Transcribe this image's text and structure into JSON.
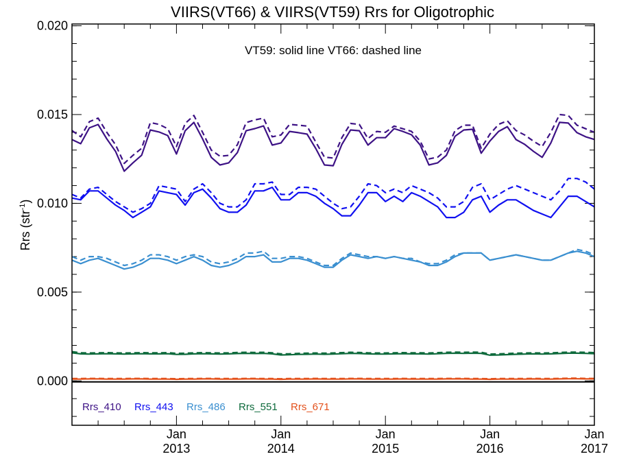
{
  "chart_data": {
    "type": "line",
    "title": "VIIRS(VT66) & VIIRS(VT59)  Rrs for Oligotrophic",
    "annotation": "VT59: solid line   VT66: dashed line",
    "ylabel": {
      "main": "Rrs (str",
      "sup": "-1",
      "close": ")"
    },
    "xlabel": "",
    "xlim": [
      2012.0,
      2017.0
    ],
    "ylim": [
      -0.0025,
      0.0201
    ],
    "x_start": 2012.0,
    "x_step_years": 0.08333,
    "y_ticks": [
      "0.000",
      "0.005",
      "0.010",
      "0.015",
      "0.020"
    ],
    "y_tick_values": [
      0.0,
      0.005,
      0.01,
      0.015,
      0.02
    ],
    "x_ticks": [
      {
        "value": 2013,
        "month": "Jan",
        "year": "2013"
      },
      {
        "value": 2014,
        "month": "Jan",
        "year": "2014"
      },
      {
        "value": 2015,
        "month": "Jan",
        "year": "2015"
      },
      {
        "value": 2016,
        "month": "Jan",
        "year": "2016"
      },
      {
        "value": 2017,
        "month": "Jan",
        "year": "2017"
      }
    ],
    "legend_position": "bottom-left",
    "series": [
      {
        "name": "Rrs_410",
        "color": "#3d1285",
        "solid": [
          0.01359,
          0.01336,
          0.01425,
          0.01444,
          0.01363,
          0.01293,
          0.01181,
          0.01228,
          0.01271,
          0.01413,
          0.01402,
          0.01382,
          0.01278,
          0.01409,
          0.01456,
          0.01363,
          0.01259,
          0.01216,
          0.01228,
          0.01286,
          0.01409,
          0.01421,
          0.01436,
          0.01328,
          0.0134,
          0.01405,
          0.01398,
          0.0139,
          0.01309,
          0.01216,
          0.01212,
          0.01332,
          0.01413,
          0.01409,
          0.01328,
          0.0137,
          0.0137,
          0.01421,
          0.01405,
          0.01386,
          0.01328,
          0.01216,
          0.01228,
          0.0127,
          0.01378,
          0.01413,
          0.01417,
          0.01282,
          0.01351,
          0.01405,
          0.01432,
          0.01359,
          0.01332,
          0.01293,
          0.01259,
          0.0134,
          0.01456,
          0.01452,
          0.01398,
          0.01375,
          0.0136
        ],
        "dashed": [
          0.0141,
          0.01375,
          0.0146,
          0.0148,
          0.014,
          0.0133,
          0.01225,
          0.0127,
          0.0131,
          0.01455,
          0.01445,
          0.0142,
          0.0132,
          0.0145,
          0.01495,
          0.014,
          0.013,
          0.01265,
          0.0127,
          0.0133,
          0.01455,
          0.0147,
          0.0148,
          0.01375,
          0.01385,
          0.01445,
          0.0144,
          0.01435,
          0.01345,
          0.0126,
          0.01255,
          0.0137,
          0.0145,
          0.01445,
          0.01365,
          0.01405,
          0.014,
          0.01435,
          0.0142,
          0.01405,
          0.0135,
          0.0125,
          0.0126,
          0.013,
          0.0141,
          0.0144,
          0.0144,
          0.0131,
          0.0139,
          0.01445,
          0.01465,
          0.0141,
          0.01385,
          0.0135,
          0.0132,
          0.014,
          0.015,
          0.01495,
          0.0144,
          0.0142,
          0.014
        ]
      },
      {
        "name": "Rrs_443",
        "color": "#1010f0",
        "solid": [
          0.0103,
          0.0102,
          0.0107,
          0.0107,
          0.0103,
          0.0099,
          0.0096,
          0.0092,
          0.0095,
          0.0098,
          0.0107,
          0.0106,
          0.0105,
          0.0099,
          0.0106,
          0.0108,
          0.0103,
          0.0097,
          0.0095,
          0.0095,
          0.0099,
          0.0107,
          0.0107,
          0.0109,
          0.0102,
          0.0102,
          0.0106,
          0.0106,
          0.0104,
          0.01,
          0.0097,
          0.0093,
          0.0093,
          0.0099,
          0.0106,
          0.0106,
          0.0101,
          0.0104,
          0.0101,
          0.0106,
          0.0104,
          0.0101,
          0.0098,
          0.0092,
          0.0092,
          0.0095,
          0.0102,
          0.0104,
          0.0095,
          0.0099,
          0.0102,
          0.0102,
          0.0099,
          0.0096,
          0.0094,
          0.0092,
          0.0098,
          0.0104,
          0.0104,
          0.0101,
          0.0098
        ],
        "dashed": [
          0.0105,
          0.0103,
          0.0108,
          0.0109,
          0.0105,
          0.0101,
          0.0098,
          0.0095,
          0.0097,
          0.01,
          0.011,
          0.0109,
          0.0108,
          0.0101,
          0.0108,
          0.0111,
          0.0106,
          0.01,
          0.0098,
          0.0098,
          0.0102,
          0.0111,
          0.0111,
          0.0112,
          0.0105,
          0.0105,
          0.0109,
          0.0109,
          0.0108,
          0.0104,
          0.01,
          0.0097,
          0.0098,
          0.0104,
          0.0111,
          0.011,
          0.0106,
          0.0108,
          0.0106,
          0.011,
          0.0108,
          0.0106,
          0.0103,
          0.0098,
          0.0098,
          0.0101,
          0.0109,
          0.0111,
          0.0102,
          0.0105,
          0.0108,
          0.011,
          0.0108,
          0.0106,
          0.0104,
          0.0102,
          0.0107,
          0.0114,
          0.0114,
          0.0112,
          0.0108
        ]
      },
      {
        "name": "Rrs_486",
        "color": "#3a8fd0",
        "solid": [
          0.0068,
          0.0066,
          0.0068,
          0.0069,
          0.0067,
          0.0065,
          0.0063,
          0.0064,
          0.0066,
          0.0069,
          0.0069,
          0.0068,
          0.0066,
          0.0068,
          0.007,
          0.0068,
          0.0065,
          0.0064,
          0.0065,
          0.0067,
          0.007,
          0.007,
          0.0071,
          0.0067,
          0.0067,
          0.0069,
          0.0069,
          0.0068,
          0.0066,
          0.0064,
          0.0064,
          0.0068,
          0.0071,
          0.007,
          0.0069,
          0.007,
          0.0069,
          0.007,
          0.0069,
          0.0068,
          0.0067,
          0.0065,
          0.0065,
          0.0067,
          0.007,
          0.0072,
          0.0072,
          0.0072,
          0.0068,
          0.0069,
          0.007,
          0.0071,
          0.007,
          0.0069,
          0.0068,
          0.0068,
          0.007,
          0.0072,
          0.0073,
          0.0072,
          0.007
        ],
        "dashed": [
          0.007,
          0.0068,
          0.007,
          0.007,
          0.0069,
          0.0067,
          0.0065,
          0.0066,
          0.0068,
          0.0071,
          0.0071,
          0.007,
          0.0068,
          0.007,
          0.0071,
          0.007,
          0.0067,
          0.0066,
          0.0067,
          0.0069,
          0.0072,
          0.0072,
          0.0073,
          0.0069,
          0.0069,
          0.007,
          0.007,
          0.0069,
          0.0067,
          0.0065,
          0.0065,
          0.0069,
          0.0072,
          0.0071,
          0.007,
          0.007,
          0.0069,
          0.007,
          0.0069,
          0.0069,
          0.0067,
          0.0066,
          0.0066,
          0.0068,
          0.0071,
          0.0072,
          0.0072,
          0.0072,
          0.0068,
          0.0069,
          0.007,
          0.0071,
          0.007,
          0.0069,
          0.0068,
          0.0068,
          0.007,
          0.0072,
          0.0074,
          0.0073,
          0.0071
        ]
      },
      {
        "name": "Rrs_551",
        "color": "#0e6a3c",
        "solid": [
          0.00158,
          0.00152,
          0.00151,
          0.00152,
          0.00153,
          0.00152,
          0.00151,
          0.00152,
          0.00153,
          0.00152,
          0.00152,
          0.00153,
          0.00149,
          0.0015,
          0.00152,
          0.00153,
          0.00152,
          0.00151,
          0.00152,
          0.00154,
          0.00155,
          0.00154,
          0.00155,
          0.00152,
          0.00146,
          0.00147,
          0.00149,
          0.0015,
          0.00151,
          0.0015,
          0.00151,
          0.00153,
          0.00155,
          0.00154,
          0.00152,
          0.00151,
          0.00151,
          0.00152,
          0.00153,
          0.00152,
          0.00152,
          0.00151,
          0.00153,
          0.00155,
          0.00156,
          0.00155,
          0.00156,
          0.00155,
          0.00145,
          0.00146,
          0.00148,
          0.0015,
          0.00151,
          0.00152,
          0.00151,
          0.00152,
          0.00154,
          0.00156,
          0.00156,
          0.00155,
          0.00153
        ],
        "dashed": [
          0.00165,
          0.00158,
          0.00157,
          0.00158,
          0.00159,
          0.00158,
          0.00157,
          0.00158,
          0.00159,
          0.00158,
          0.00158,
          0.00159,
          0.00155,
          0.00156,
          0.00158,
          0.00159,
          0.00158,
          0.00157,
          0.00158,
          0.0016,
          0.00161,
          0.0016,
          0.00161,
          0.00158,
          0.00152,
          0.00153,
          0.00155,
          0.00156,
          0.00157,
          0.00156,
          0.00157,
          0.00159,
          0.00161,
          0.0016,
          0.00158,
          0.00157,
          0.00157,
          0.00158,
          0.00159,
          0.00158,
          0.00158,
          0.00157,
          0.00159,
          0.00161,
          0.00162,
          0.00161,
          0.00162,
          0.00161,
          0.00151,
          0.00152,
          0.00154,
          0.00156,
          0.00157,
          0.00158,
          0.00157,
          0.00158,
          0.0016,
          0.00162,
          0.00162,
          0.00161,
          0.00159
        ]
      },
      {
        "name": "Rrs_671",
        "color": "#e3501a",
        "solid": [
          0.0001,
          0.0001,
          0.00011,
          0.00011,
          0.0001,
          0.0001,
          0.0001,
          0.00011,
          0.00011,
          0.0001,
          0.0001,
          0.0001,
          9e-05,
          0.0001,
          0.0001,
          0.00011,
          0.00011,
          0.0001,
          0.0001,
          0.0001,
          0.00011,
          0.00011,
          0.0001,
          0.0001,
          9e-05,
          0.0001,
          0.0001,
          0.0001,
          0.00011,
          0.0001,
          0.0001,
          0.0001,
          0.00011,
          0.00011,
          0.0001,
          0.0001,
          0.0001,
          0.0001,
          0.00011,
          0.0001,
          0.0001,
          0.0001,
          0.0001,
          0.00011,
          0.00011,
          0.00011,
          0.0001,
          0.0001,
          9e-05,
          0.0001,
          0.0001,
          0.0001,
          0.0001,
          0.00011,
          0.0001,
          0.0001,
          0.00011,
          0.00012,
          0.00012,
          0.00011,
          0.00011
        ],
        "dashed": [
          0.00013,
          0.00013,
          0.00014,
          0.00014,
          0.00013,
          0.00013,
          0.00013,
          0.00014,
          0.00014,
          0.00013,
          0.00013,
          0.00013,
          0.00012,
          0.00013,
          0.00013,
          0.00014,
          0.00014,
          0.00013,
          0.00013,
          0.00013,
          0.00014,
          0.00014,
          0.00013,
          0.00013,
          0.00012,
          0.00013,
          0.00013,
          0.00013,
          0.00014,
          0.00013,
          0.00013,
          0.00013,
          0.00014,
          0.00014,
          0.00013,
          0.00013,
          0.00013,
          0.00013,
          0.00014,
          0.00013,
          0.00013,
          0.00013,
          0.00013,
          0.00014,
          0.00014,
          0.00014,
          0.00013,
          0.00013,
          0.00012,
          0.00013,
          0.00013,
          0.00013,
          0.00013,
          0.00014,
          0.00013,
          0.00013,
          0.00014,
          0.00015,
          0.00015,
          0.00014,
          0.00014
        ]
      }
    ]
  }
}
